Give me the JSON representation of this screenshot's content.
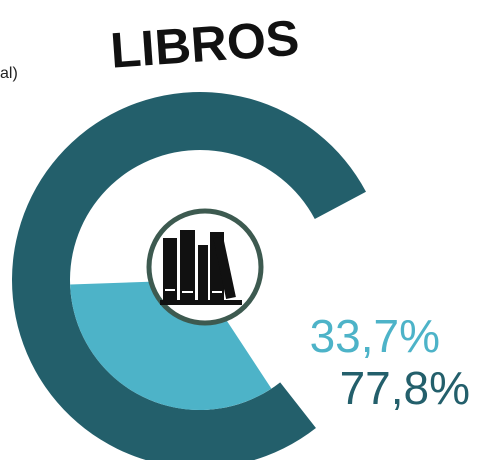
{
  "chart_data": {
    "type": "donut",
    "title": "LIBROS",
    "annotation": "al)",
    "values": [
      77.8,
      33.7
    ],
    "value_labels": [
      "77,8%",
      "33,7%"
    ],
    "colors": [
      "#235f6b",
      "#4db3c8"
    ]
  }
}
